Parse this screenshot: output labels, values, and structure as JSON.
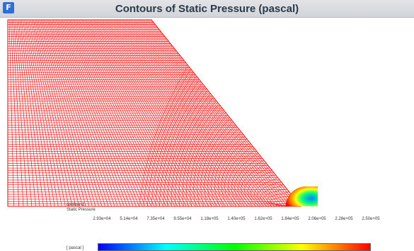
{
  "window": {
    "icon_letter": "F",
    "title": "Contours of Static Pressure (pascal)"
  },
  "legend": {
    "name": "contour-1",
    "quantity": "Static Pressure",
    "units": "[ pascal ]",
    "ticks": [
      "2.93e+04",
      "5.14e+04",
      "7.35e+04",
      "9.55e+04",
      "1.18e+05",
      "1.40e+05",
      "1.62e+05",
      "1.84e+05",
      "2.06e+05",
      "2.28e+05",
      "2.50e+05"
    ],
    "colormap": [
      "#0000ff",
      "#0080ff",
      "#00ffff",
      "#00ff80",
      "#00ff00",
      "#80ff00",
      "#ffff00",
      "#ff8000",
      "#ff0000"
    ]
  },
  "colors": {
    "mesh": "#ff0000",
    "background": "#ffffff",
    "title_text": "#2b3a4a"
  }
}
